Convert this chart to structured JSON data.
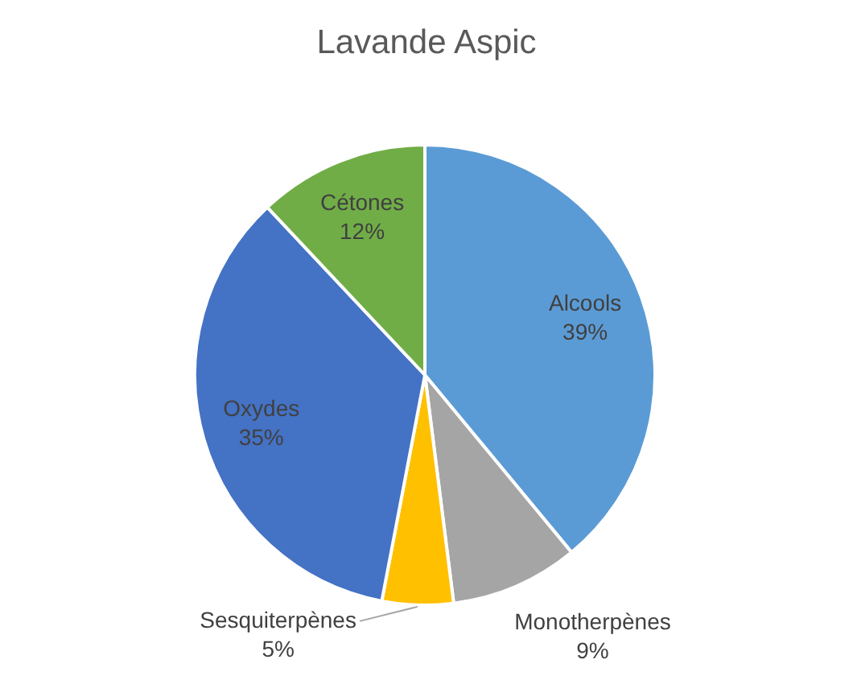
{
  "chart_data": {
    "type": "pie",
    "title": "Lavande Aspic",
    "categories": [
      "Alcools",
      "Monotherpènes",
      "Sesquiterpènes",
      "Oxydes",
      "Cétones"
    ],
    "values": [
      39,
      9,
      5,
      35,
      12
    ],
    "value_labels": [
      "39%",
      "9%",
      "5%",
      "35%",
      "12%"
    ],
    "colors": [
      "#5b9bd5",
      "#a5a5a5",
      "#ffc000",
      "#4472c4",
      "#70ad47"
    ],
    "legend": false
  }
}
